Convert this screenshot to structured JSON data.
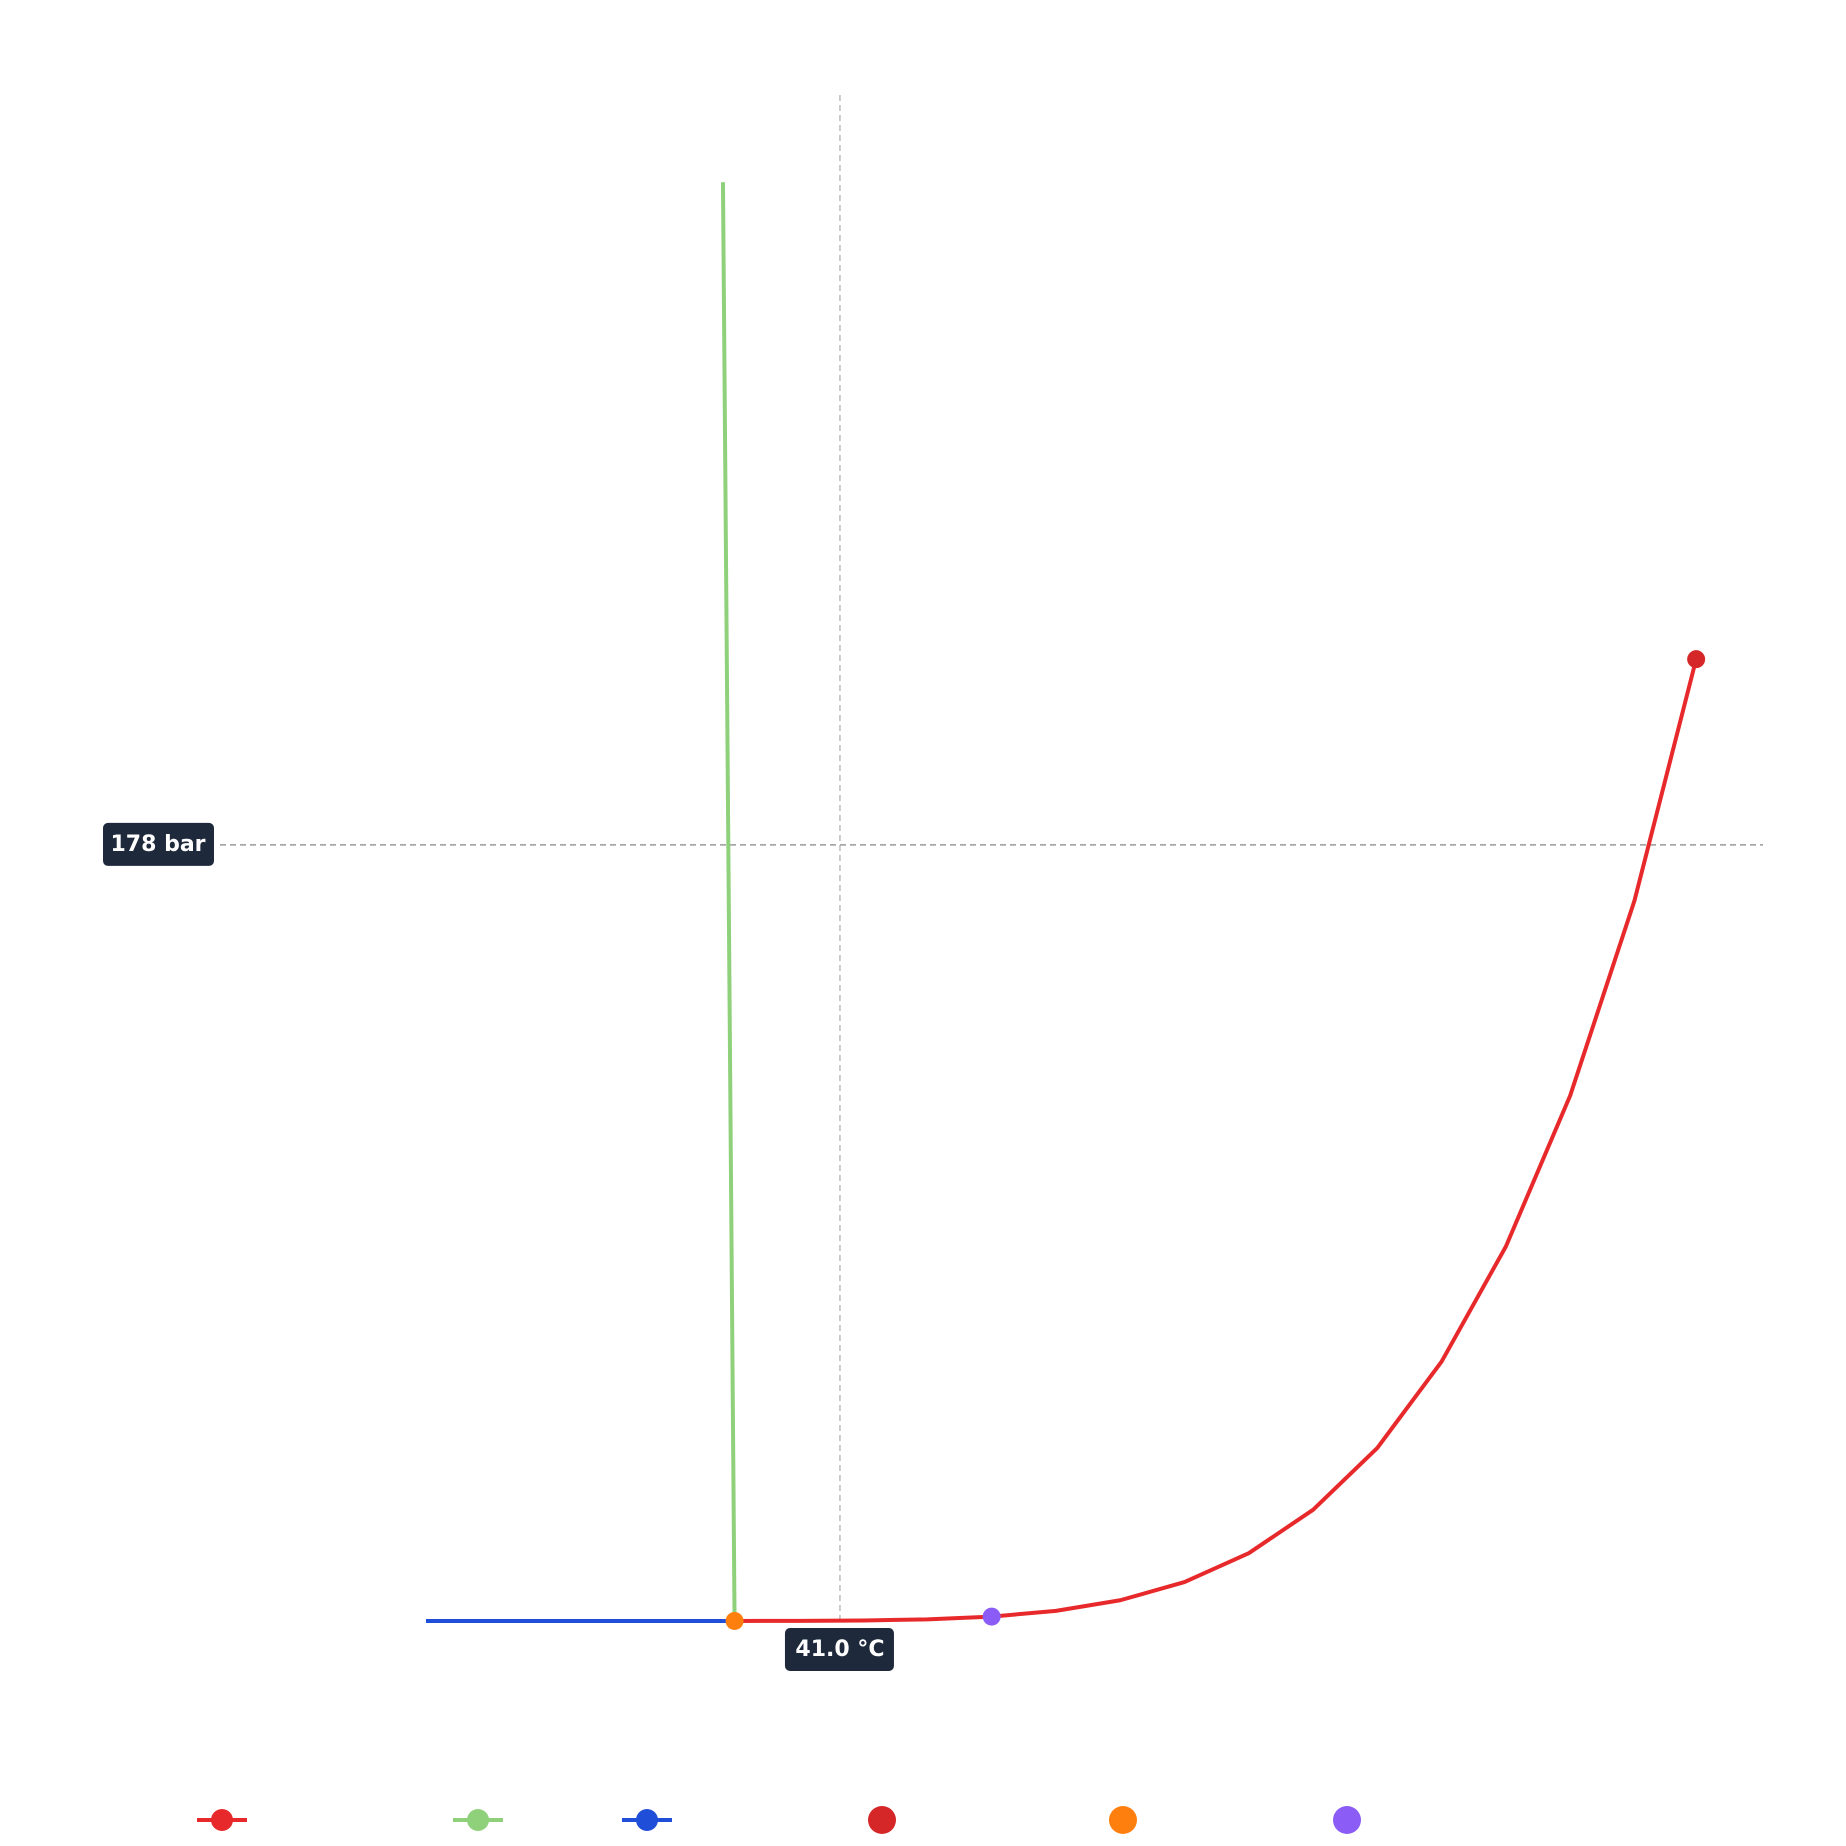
{
  "chart_data": {
    "type": "line",
    "xlim": [
      -120,
      400
    ],
    "ylim": [
      0,
      350
    ],
    "series": [
      {
        "color": "#e8292b",
        "line": true,
        "x": [
          0.01,
          25,
          50,
          75,
          100,
          125,
          150,
          175,
          200,
          225,
          250,
          275,
          300,
          325,
          350,
          374
        ],
        "values": [
          0.006,
          0.032,
          0.123,
          0.386,
          1.013,
          2.32,
          4.76,
          8.92,
          15.55,
          25.5,
          39.7,
          59.5,
          85.9,
          120.5,
          165.2,
          220.6
        ]
      },
      {
        "color": "#8fd17a",
        "line": true,
        "x": [
          0.01,
          -4.5
        ],
        "values": [
          0.006,
          330
        ]
      },
      {
        "color": "#1f4fd8",
        "line": true,
        "x": [
          -120,
          -80,
          -40,
          0.01
        ],
        "values": [
          0,
          5e-06,
          0.0001,
          0.006
        ]
      },
      {
        "color": "#d62728",
        "line": false,
        "x": [
          374
        ],
        "values": [
          220.6
        ]
      },
      {
        "color": "#ff7f0e",
        "line": false,
        "x": [
          0.01
        ],
        "values": [
          0.006
        ]
      },
      {
        "color": "#8b5cf6",
        "line": false,
        "x": [
          100
        ],
        "values": [
          1.013
        ]
      }
    ],
    "crosshair": {
      "x": {
        "value": 41.0,
        "label": "41.0 °C"
      },
      "y": {
        "value": 178,
        "label": "178 bar"
      }
    }
  }
}
